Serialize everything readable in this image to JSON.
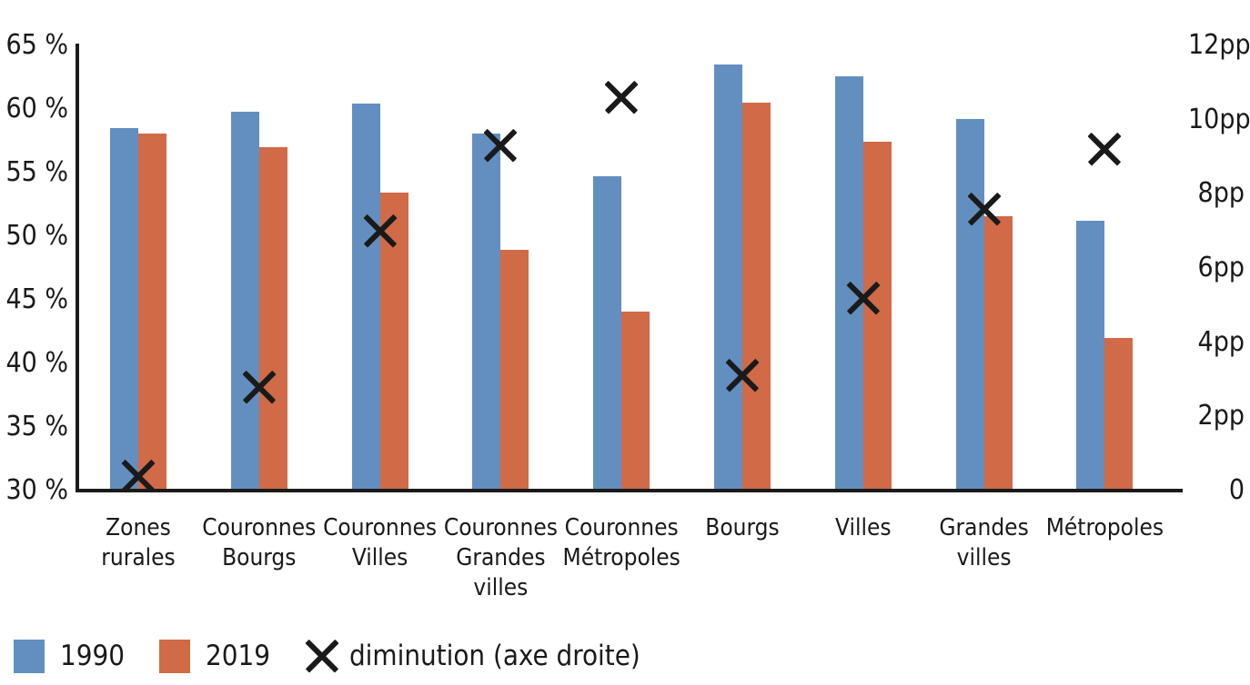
{
  "legend": {
    "items": [
      {
        "label": "1990",
        "swatch_color": "#628FBF"
      },
      {
        "label": "2019",
        "swatch_color": "#D06A47"
      },
      {
        "label": "diminution (axe droite)",
        "marker": "x-icon"
      }
    ]
  },
  "colors": {
    "series_1990": "#628FBF",
    "series_2019": "#D06A47",
    "marker_and_text": "#1a1a1a",
    "background": "#ffffff"
  },
  "chart_data": {
    "type": "bar",
    "subtype": "grouped-bars-with-scatter-x-markers-dual-axis",
    "grid": false,
    "legend_position": "bottom-left",
    "categories": [
      "Zones rurales",
      "Couronnes Bourgs",
      "Couronnes Villes",
      "Couronnes Grandes villes",
      "Couronnes Métropoles",
      "Bourgs",
      "Villes",
      "Grandes villes",
      "Métropoles"
    ],
    "category_label_lines": [
      [
        "Zones",
        "rurales"
      ],
      [
        "Couronnes",
        "Bourgs"
      ],
      [
        "Couronnes",
        "Villes"
      ],
      [
        "Couronnes",
        "Grandes",
        "villes"
      ],
      [
        "Couronnes",
        "Métropoles"
      ],
      [
        "Bourgs"
      ],
      [
        "Villes"
      ],
      [
        "Grandes",
        "villes"
      ],
      [
        "Métropoles"
      ]
    ],
    "series": [
      {
        "name": "1990",
        "type": "bar",
        "axis": "left",
        "color": "#628FBF",
        "values": [
          58.5,
          59.8,
          60.4,
          58.1,
          54.7,
          63.5,
          62.6,
          59.2,
          51.2
        ]
      },
      {
        "name": "2019",
        "type": "bar",
        "axis": "left",
        "color": "#D06A47",
        "values": [
          58.1,
          57.0,
          53.4,
          48.9,
          44.1,
          60.5,
          57.4,
          51.6,
          42.0
        ]
      },
      {
        "name": "diminution (axe droite)",
        "type": "scatter",
        "marker": "x",
        "axis": "right",
        "color": "#1a1a1a",
        "values": [
          0.4,
          2.8,
          7.0,
          9.3,
          10.6,
          3.1,
          5.2,
          7.6,
          9.2
        ]
      }
    ],
    "left_axis": {
      "unit": "%",
      "min": 30,
      "max": 65,
      "ticks": [
        {
          "label": "65 %",
          "value": 65
        },
        {
          "label": "60 %",
          "value": 60
        },
        {
          "label": "55 %",
          "value": 55
        },
        {
          "label": "50 %",
          "value": 50
        },
        {
          "label": "45 %",
          "value": 45
        },
        {
          "label": "40 %",
          "value": 40
        },
        {
          "label": "35 %",
          "value": 35
        },
        {
          "label": "30 %",
          "value": 30
        }
      ]
    },
    "right_axis": {
      "unit": "pp",
      "min": 0,
      "max": 12,
      "ticks": [
        {
          "label": "12pp",
          "value": 12
        },
        {
          "label": "10pp",
          "value": 10
        },
        {
          "label": "8pp",
          "value": 8
        },
        {
          "label": "6pp",
          "value": 6
        },
        {
          "label": "4pp",
          "value": 4
        },
        {
          "label": "2pp",
          "value": 2
        },
        {
          "label": "0",
          "value": 0
        }
      ]
    }
  }
}
